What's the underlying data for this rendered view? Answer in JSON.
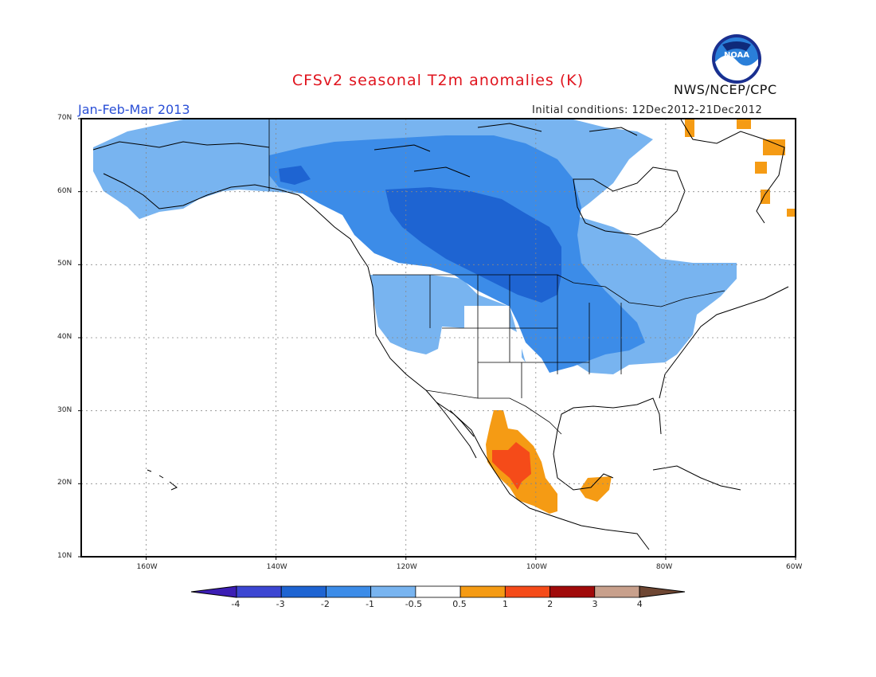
{
  "title": "CFSv2 seasonal T2m anomalies (K)",
  "period": "Jan-Feb-Mar 2013",
  "initial_conditions": "Initial conditions: 12Dec2012-21Dec2012",
  "agency": "NWS/NCEP/CPC",
  "logo_text": "NOAA",
  "map": {
    "lat_labels": [
      "70N",
      "60N",
      "50N",
      "40N",
      "30N",
      "20N",
      "10N"
    ],
    "lon_labels": [
      "160W",
      "140W",
      "120W",
      "100W",
      "80W",
      "60W"
    ],
    "lon_range": [
      -170,
      -60
    ],
    "lat_range": [
      10,
      70
    ],
    "regions": [
      {
        "id": "alaska-yukon-cold",
        "class": "-1 to -0.5",
        "color": "#78b4f0"
      },
      {
        "id": "western-canada-cold",
        "class": "-2 to -1",
        "color": "#3c8ce8"
      },
      {
        "id": "central-canada-core-cold",
        "class": "-3 to -2",
        "color": "#1e64d2"
      },
      {
        "id": "us-plains-midwest-cold",
        "class": "-2 to -1",
        "color": "#3c8ce8"
      },
      {
        "id": "northeast-us-cold",
        "class": "-1 to -0.5",
        "color": "#78b4f0"
      },
      {
        "id": "mexico-warm",
        "class": "0.5 to 1",
        "color": "#f59b14"
      },
      {
        "id": "mexico-hot-core",
        "class": "1 to 2",
        "color": "#f54b19"
      },
      {
        "id": "yucatan-warm",
        "class": "0.5 to 1",
        "color": "#f59b14"
      },
      {
        "id": "greenland-warm",
        "class": "0.5 to 1",
        "color": "#f59b14"
      }
    ]
  },
  "colorbar": {
    "labels": [
      "-4",
      "-3",
      "-2",
      "-1",
      "-0.5",
      "0.5",
      "1",
      "2",
      "3",
      "4"
    ],
    "colors": [
      "#3c1eb4",
      "#3c46d2",
      "#1e64d2",
      "#3c8ce8",
      "#78b4f0",
      "#ffffff",
      "#f59b14",
      "#f54b19",
      "#a00a0a",
      "#c8a08c",
      "#6e4632"
    ]
  }
}
